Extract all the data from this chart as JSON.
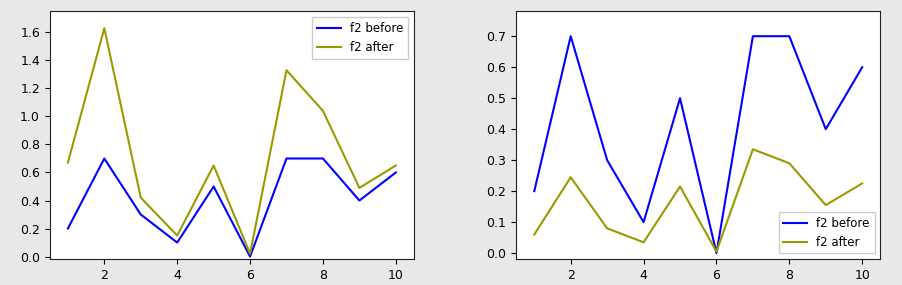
{
  "left": {
    "x": [
      1,
      2,
      3,
      4,
      5,
      6,
      7,
      8,
      9,
      10
    ],
    "blue": [
      0.2,
      0.7,
      0.3,
      0.1,
      0.5,
      0.0,
      0.7,
      0.7,
      0.4,
      0.6
    ],
    "yellow": [
      0.67,
      1.63,
      0.42,
      0.15,
      0.65,
      0.02,
      1.33,
      1.04,
      0.49,
      0.65
    ]
  },
  "right": {
    "x": [
      1,
      2,
      3,
      4,
      5,
      6,
      7,
      8,
      9,
      10
    ],
    "blue": [
      0.2,
      0.7,
      0.3,
      0.1,
      0.5,
      0.0,
      0.7,
      0.7,
      0.4,
      0.6
    ],
    "yellow": [
      0.06,
      0.245,
      0.08,
      0.035,
      0.215,
      0.005,
      0.335,
      0.29,
      0.155,
      0.225
    ]
  },
  "blue_color": "#0000ff",
  "yellow_color": "#9a9a00",
  "label_blue": "f2 before",
  "label_yellow": "f2 after",
  "left_ylim": [
    -0.02,
    1.75
  ],
  "right_ylim": [
    -0.02,
    0.78
  ],
  "xticks": [
    2,
    4,
    6,
    8,
    10
  ],
  "bg_color": "#ffffff",
  "outer_bg": "#e8e8e8"
}
